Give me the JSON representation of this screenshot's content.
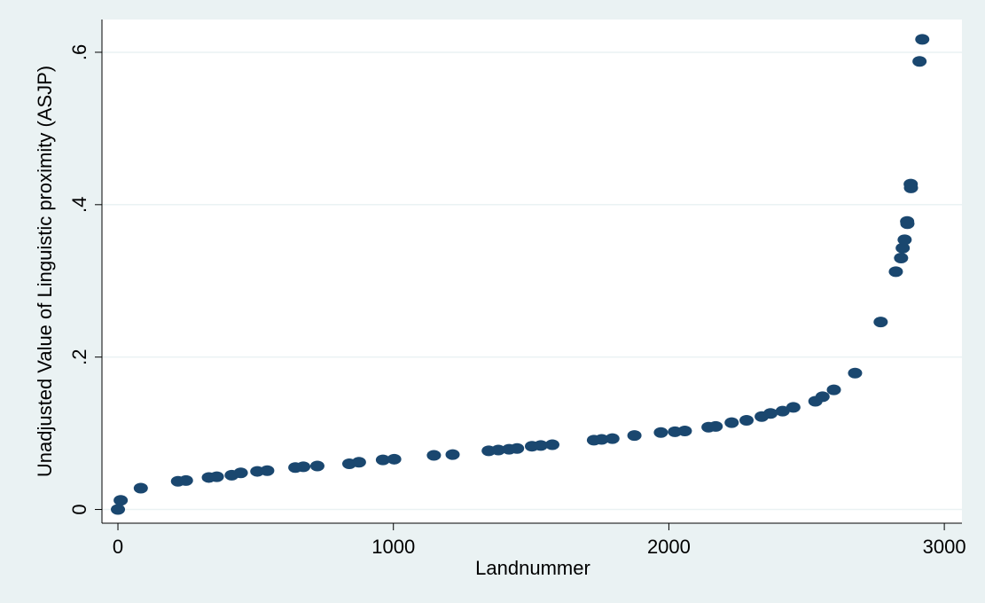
{
  "chart_data": {
    "type": "scatter",
    "x_label": "Landnummer",
    "y_label": "Unadjusted Value of Linguistic proximity (ASJP)",
    "color": "#1a476f",
    "grid": true,
    "xlim": [
      -58,
      3064
    ],
    "ylim": [
      -0.018,
      0.643
    ],
    "xticks": [
      0,
      1000,
      2000,
      3000
    ],
    "yticks": [
      0,
      {
        "value": 0.2,
        "label": ".2"
      },
      {
        "value": 0.4,
        "label": ".4"
      },
      {
        "value": 0.6,
        "label": ".6"
      }
    ],
    "x": [
      0,
      10,
      83,
      218,
      247,
      330,
      359,
      413,
      446,
      506,
      542,
      644,
      673,
      724,
      840,
      875,
      962,
      1003,
      1147,
      1215,
      1346,
      1381,
      1420,
      1449,
      1503,
      1535,
      1577,
      1728,
      1756,
      1795,
      1875,
      1971,
      2022,
      2058,
      2144,
      2170,
      2228,
      2282,
      2337,
      2369,
      2413,
      2452,
      2532,
      2558,
      2599,
      2676,
      2769,
      2824,
      2843,
      2849,
      2856,
      2865,
      2866,
      2878,
      2879,
      2910,
      2920
    ],
    "y": [
      0,
      0.012,
      0.028,
      0.037,
      0.038,
      0.042,
      0.043,
      0.045,
      0.048,
      0.05,
      0.051,
      0.055,
      0.056,
      0.057,
      0.06,
      0.062,
      0.065,
      0.066,
      0.071,
      0.072,
      0.077,
      0.078,
      0.079,
      0.08,
      0.083,
      0.084,
      0.085,
      0.091,
      0.092,
      0.093,
      0.097,
      0.101,
      0.102,
      0.103,
      0.108,
      0.109,
      0.114,
      0.117,
      0.122,
      0.126,
      0.129,
      0.134,
      0.142,
      0.148,
      0.157,
      0.179,
      0.246,
      0.312,
      0.33,
      0.343,
      0.354,
      0.378,
      0.375,
      0.427,
      0.422,
      0.588,
      0.617
    ]
  }
}
